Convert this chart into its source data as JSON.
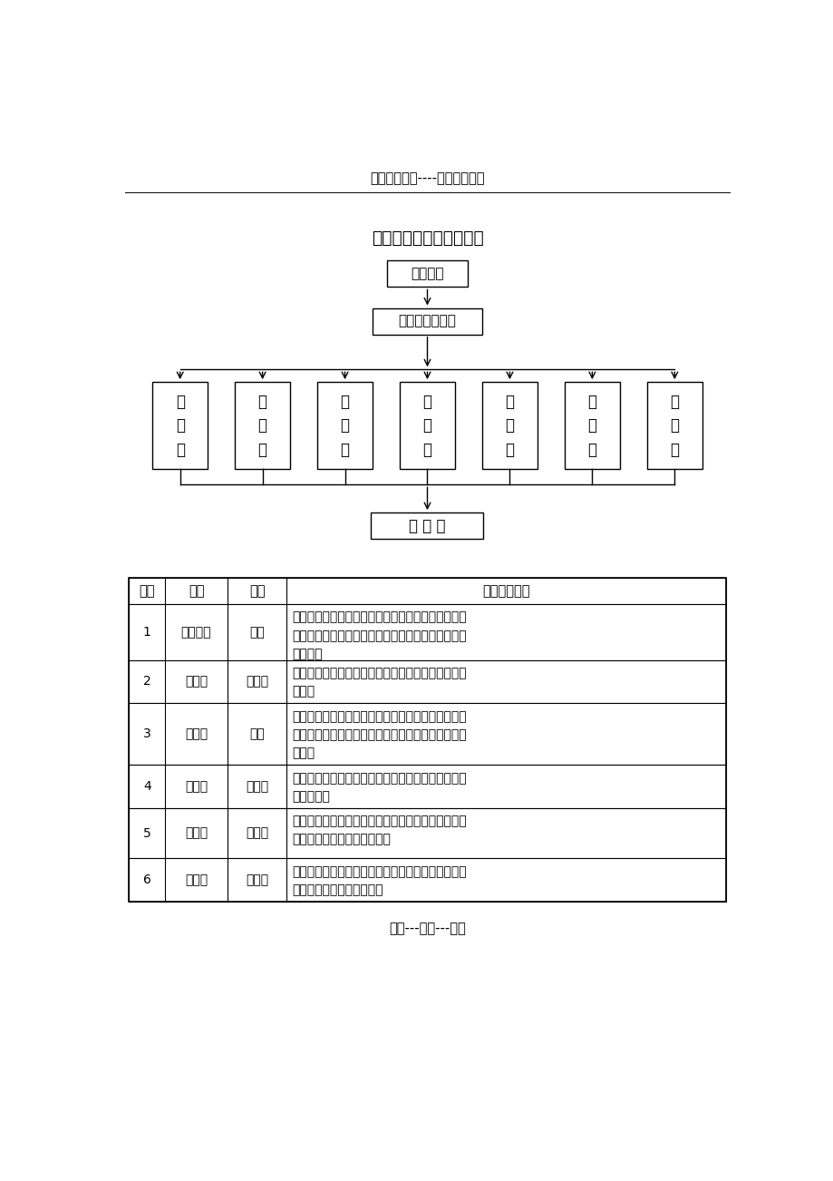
{
  "header_text": "精选优质文档----倾情为你奉上",
  "footer_text": "专心---专注---专业",
  "title": "施工现场安全管理网络图",
  "org_nodes": {
    "top": "项目经理",
    "middle": "项目技术负责人",
    "level3": [
      "施\n工\n员",
      "资\n料\n员",
      "计\n划\n员",
      "安\n全\n员",
      "质\n检\n员",
      "材\n料\n员",
      "预\n算\n员"
    ],
    "bottom": "施 工 队"
  },
  "table_headers": [
    "序号",
    "岗位",
    "姓名",
    "岗位职责概述"
  ],
  "table_rows": [
    [
      "1",
      "项目经理",
      "顾杰",
      "全面负责工程施工实施的计划决策、组织指挥、协调\n等经营管理工作，承担经营管理责任，终身负责工程\n质量管理"
    ],
    [
      "2",
      "安全员",
      "郭文斌",
      "专职专责负责该项目的现场施工安全及文明生产的管\n理工作"
    ],
    [
      "3",
      "质检员",
      "袁铖",
      "认真执行国家及上级有关质量监督的规定、标准。对\n工程质量负监督、检查、验收责任，坚决制止不合格\n品通行"
    ],
    [
      "4",
      "施工员",
      "查晓君",
      "负责落实执行施工技术方案和质量、安全保证措施，\n负执行责任"
    ],
    [
      "5",
      "材料员",
      "李雪男",
      "负责该工程的材料采购、进场计划，以及材料进场验\n收、搬运和储存等方面的管理"
    ],
    [
      "6",
      "预算员",
      "顾勤芹",
      "负责该工程的财务收支，计划工程量、工程完成量和\n增减工程的统计、核算工作"
    ]
  ],
  "bg_color": "#ffffff",
  "text_color": "#000000"
}
